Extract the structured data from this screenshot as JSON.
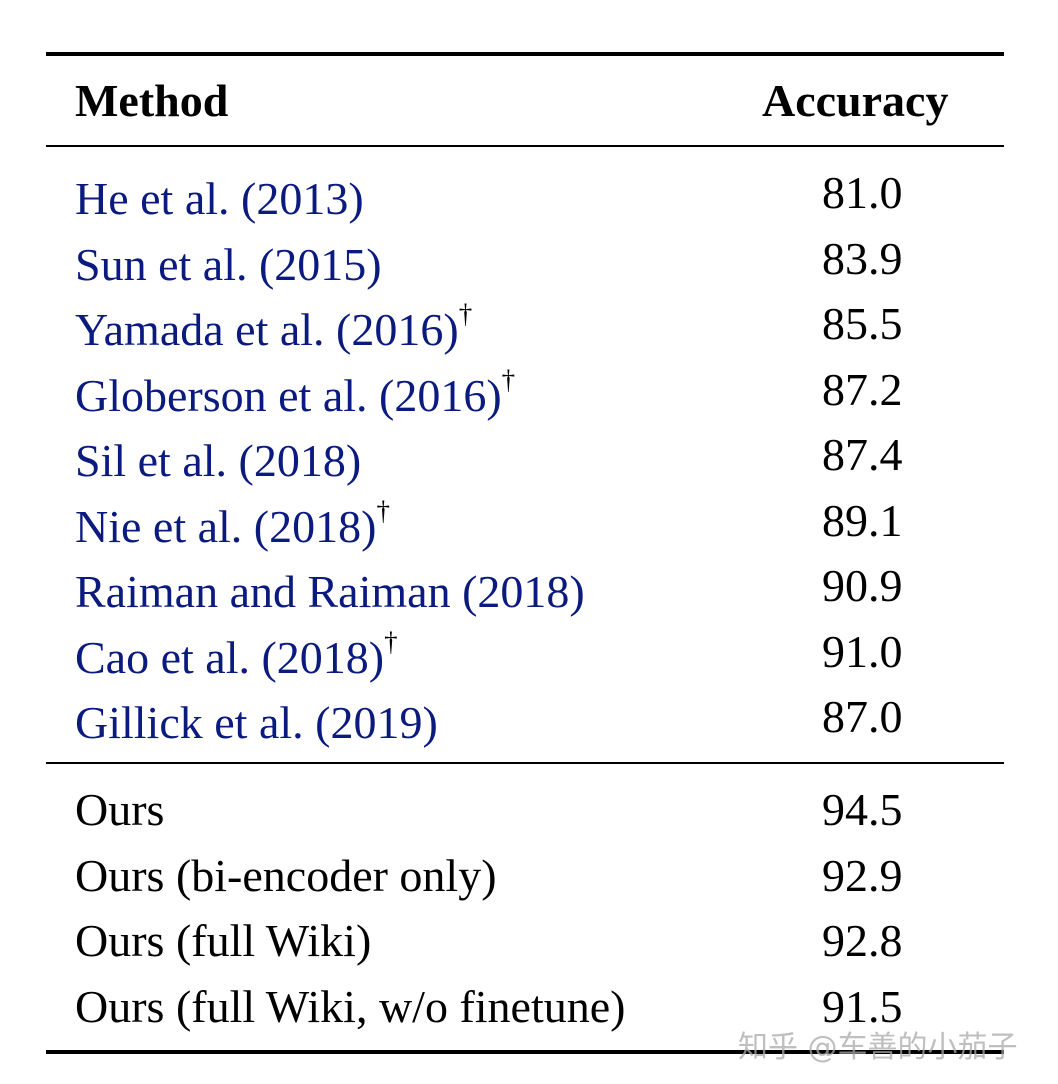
{
  "table": {
    "headers": {
      "method": "Method",
      "accuracy": "Accuracy"
    },
    "baselines": [
      {
        "method": "He et al. (2013)",
        "dagger": "",
        "accuracy": "81.0"
      },
      {
        "method": "Sun et al. (2015)",
        "dagger": "",
        "accuracy": "83.9"
      },
      {
        "method": "Yamada et al. (2016)",
        "dagger": "†",
        "accuracy": "85.5"
      },
      {
        "method": "Globerson et al. (2016)",
        "dagger": "†",
        "accuracy": "87.2"
      },
      {
        "method": "Sil et al. (2018)",
        "dagger": "",
        "accuracy": "87.4"
      },
      {
        "method": "Nie et al. (2018)",
        "dagger": "†",
        "accuracy": "89.1"
      },
      {
        "method": "Raiman and Raiman (2018)",
        "dagger": "",
        "accuracy": "90.9"
      },
      {
        "method": "Cao et al. (2018)",
        "dagger": "†",
        "accuracy": "91.0"
      },
      {
        "method": "Gillick et al. (2019)",
        "dagger": "",
        "accuracy": "87.0"
      }
    ],
    "ours": [
      {
        "method": "Ours",
        "accuracy": "94.5"
      },
      {
        "method": "Ours (bi-encoder only)",
        "accuracy": "92.9"
      },
      {
        "method": "Ours (full Wiki)",
        "accuracy": "92.8"
      },
      {
        "method": "Ours (full Wiki, w/o finetune)",
        "accuracy": "91.5"
      }
    ]
  },
  "watermark": "知乎 @车善的小茄子",
  "colors": {
    "citation": "#0b1a7e",
    "text": "#000000",
    "watermark": "#aaaaaa"
  }
}
